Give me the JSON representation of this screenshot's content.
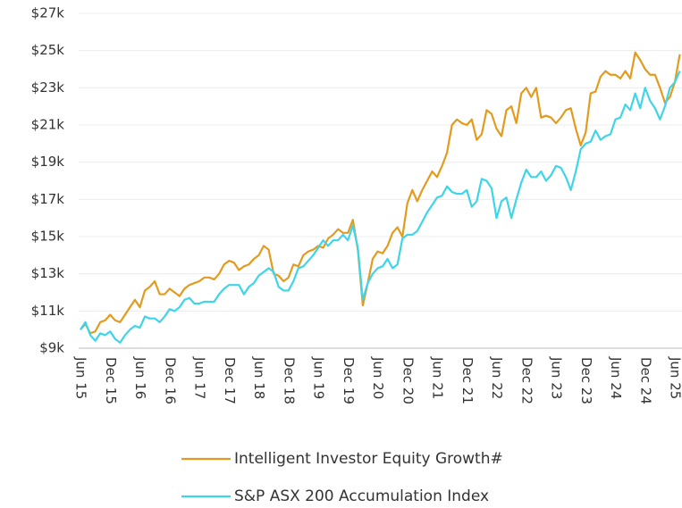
{
  "chart_data": {
    "type": "line",
    "categories": [
      "Jun 15",
      null,
      null,
      null,
      null,
      null,
      "Dec 15",
      null,
      null,
      null,
      null,
      null,
      "Jun 16",
      null,
      null,
      null,
      null,
      null,
      "Dec 16",
      null,
      null,
      null,
      null,
      null,
      "Jun 17",
      null,
      null,
      null,
      null,
      null,
      "Dec 17",
      null,
      null,
      null,
      null,
      null,
      "Jun 18",
      null,
      null,
      null,
      null,
      null,
      "Dec 18",
      null,
      null,
      null,
      null,
      null,
      "Jun 19",
      null,
      null,
      null,
      null,
      null,
      "Dec 19",
      null,
      null,
      null,
      null,
      null,
      "Jun 20",
      null,
      null,
      null,
      null,
      null,
      "Dec 20",
      null,
      null,
      null,
      null,
      null,
      "Jun 21",
      null,
      null,
      null,
      null,
      null,
      "Dec 21",
      null,
      null,
      null,
      null,
      null,
      "Jun 22",
      null,
      null,
      null,
      null,
      null,
      "Dec 22",
      null,
      null,
      null,
      null,
      null,
      "Jun 23",
      null,
      null,
      null,
      null,
      null,
      "Dec 23",
      null,
      null,
      null,
      null,
      null,
      "Jun 24",
      null,
      null,
      null,
      null,
      null,
      "Dec 24",
      null,
      null,
      null,
      null,
      null,
      "Jun 25",
      null
    ],
    "series": [
      {
        "name": "Intelligent Investor Equity Growth#",
        "color": "#e39b1e",
        "values": [
          10.0,
          10.3,
          9.8,
          9.9,
          10.4,
          10.5,
          10.8,
          10.5,
          10.4,
          10.8,
          11.2,
          11.6,
          11.2,
          12.1,
          12.3,
          12.6,
          11.9,
          11.9,
          12.2,
          12.0,
          11.8,
          12.2,
          12.4,
          12.5,
          12.6,
          12.8,
          12.8,
          12.7,
          13.0,
          13.5,
          13.7,
          13.6,
          13.2,
          13.4,
          13.5,
          13.8,
          14.0,
          14.5,
          14.3,
          13.0,
          12.9,
          12.6,
          12.8,
          13.5,
          13.4,
          14.0,
          14.2,
          14.3,
          14.5,
          14.4,
          14.9,
          15.1,
          15.4,
          15.2,
          15.2,
          15.9,
          14.3,
          11.3,
          12.5,
          13.8,
          14.2,
          14.1,
          14.5,
          15.2,
          15.5,
          15.0,
          16.8,
          17.5,
          16.9,
          17.5,
          18.0,
          18.5,
          18.2,
          18.8,
          19.5,
          21.0,
          21.3,
          21.1,
          21.0,
          21.3,
          20.2,
          20.5,
          21.8,
          21.6,
          20.8,
          20.4,
          21.8,
          22.0,
          21.1,
          22.7,
          23.0,
          22.5,
          23.0,
          21.4,
          21.5,
          21.4,
          21.1,
          21.4,
          21.8,
          21.9,
          20.8,
          19.9,
          20.6,
          22.7,
          22.8,
          23.6,
          23.9,
          23.7,
          23.7,
          23.5,
          23.9,
          23.5,
          24.9,
          24.5,
          24.0,
          23.7,
          23.7,
          23.0,
          22.2,
          22.5,
          23.3,
          24.8
        ]
      },
      {
        "name": "S&P ASX 200 Accumulation Index",
        "color": "#3dd5ea",
        "values": [
          10.0,
          10.4,
          9.7,
          9.4,
          9.8,
          9.7,
          9.9,
          9.5,
          9.3,
          9.7,
          10.0,
          10.2,
          10.1,
          10.7,
          10.6,
          10.6,
          10.4,
          10.7,
          11.1,
          11.0,
          11.2,
          11.6,
          11.7,
          11.4,
          11.4,
          11.5,
          11.5,
          11.5,
          11.9,
          12.2,
          12.4,
          12.4,
          12.4,
          11.9,
          12.3,
          12.5,
          12.9,
          13.1,
          13.3,
          13.1,
          12.3,
          12.1,
          12.1,
          12.6,
          13.3,
          13.4,
          13.7,
          14.0,
          14.4,
          14.8,
          14.5,
          14.8,
          14.8,
          15.1,
          14.8,
          15.6,
          14.4,
          11.6,
          12.5,
          13.0,
          13.3,
          13.4,
          13.8,
          13.3,
          13.5,
          14.9,
          15.1,
          15.1,
          15.3,
          15.8,
          16.3,
          16.7,
          17.1,
          17.2,
          17.7,
          17.4,
          17.3,
          17.3,
          17.5,
          16.6,
          16.9,
          18.1,
          18.0,
          17.6,
          16.0,
          16.9,
          17.1,
          16.0,
          17.0,
          17.9,
          18.6,
          18.2,
          18.2,
          18.5,
          18.0,
          18.3,
          18.8,
          18.7,
          18.2,
          17.5,
          18.5,
          19.7,
          20.0,
          20.1,
          20.7,
          20.2,
          20.4,
          20.5,
          21.3,
          21.4,
          22.1,
          21.8,
          22.7,
          21.9,
          23.0,
          22.3,
          21.9,
          21.3,
          22.0,
          23.0,
          23.3,
          23.9
        ]
      }
    ],
    "ylim": [
      9,
      27
    ],
    "yticks": [
      {
        "value": 9,
        "label": "$9k"
      },
      {
        "value": 11,
        "label": "$11k"
      },
      {
        "value": 13,
        "label": "$13k"
      },
      {
        "value": 15,
        "label": "$15k"
      },
      {
        "value": 17,
        "label": "$17k"
      },
      {
        "value": 19,
        "label": "$19k"
      },
      {
        "value": 21,
        "label": "$21k"
      },
      {
        "value": 23,
        "label": "$23k"
      },
      {
        "value": 25,
        "label": "$25k"
      },
      {
        "value": 27,
        "label": "$27k"
      }
    ],
    "grid": true
  }
}
